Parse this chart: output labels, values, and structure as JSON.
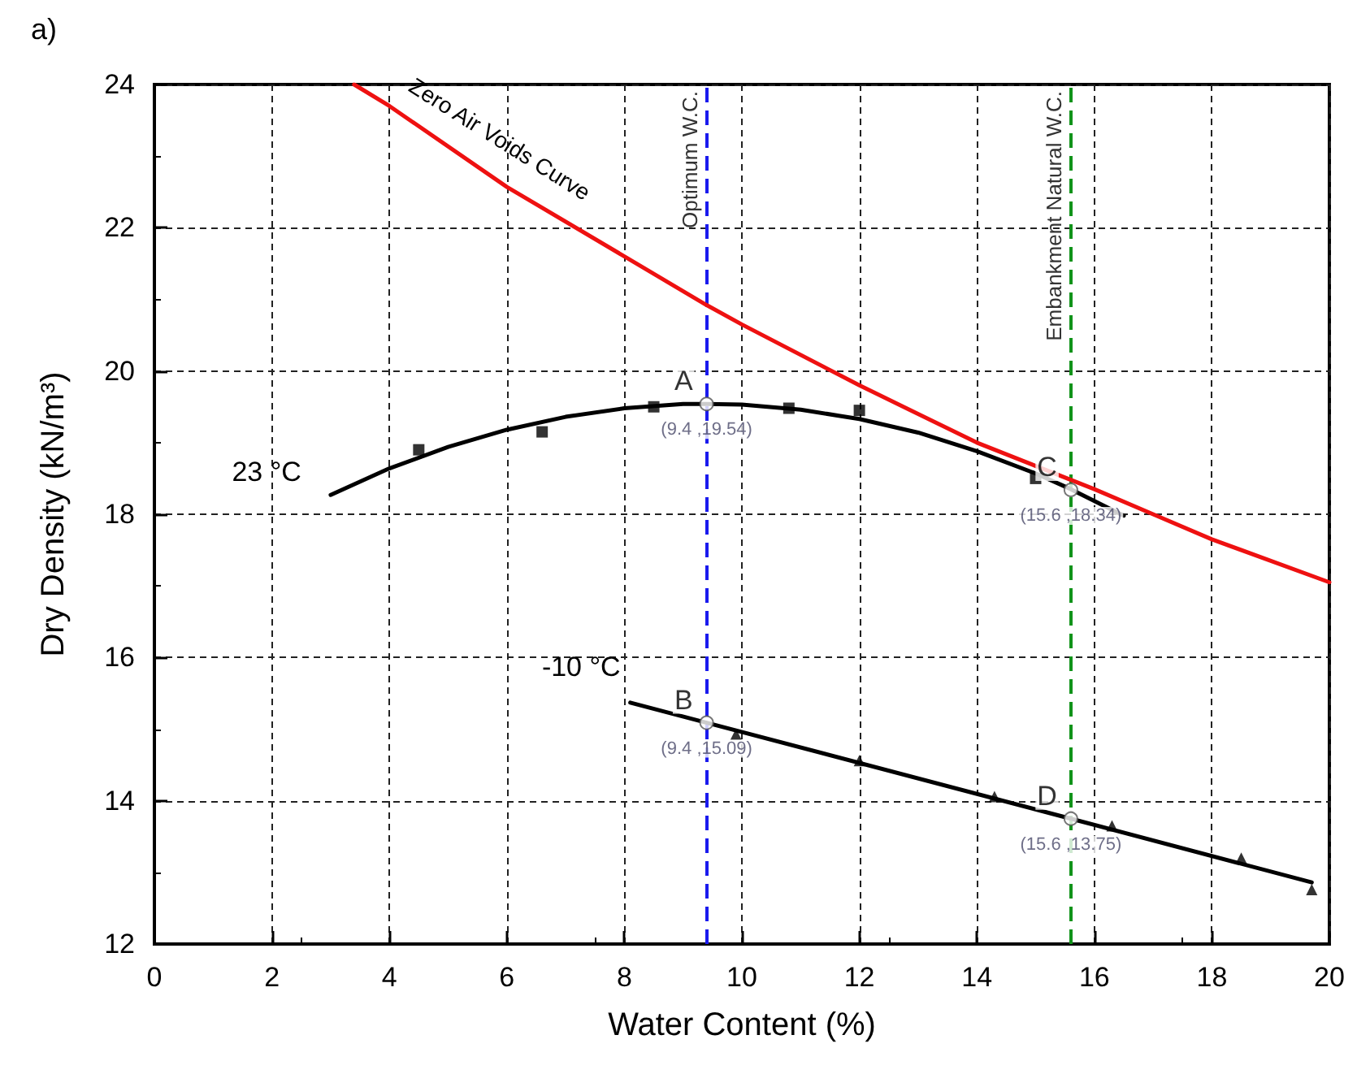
{
  "chart_data": {
    "type": "scatter",
    "title": "a)",
    "xlabel": "Water Content (%)",
    "ylabel": "Dry Density (kN/m³)",
    "xlim": [
      0,
      20
    ],
    "ylim": [
      12,
      24
    ],
    "xticks": [
      0,
      2,
      4,
      6,
      8,
      10,
      12,
      14,
      16,
      18,
      20
    ],
    "yticks": [
      12,
      14,
      16,
      18,
      20,
      22,
      24
    ],
    "grid": true,
    "legend": false,
    "series": [
      {
        "name": "Zero Air Voids Curve",
        "type": "line",
        "color": "#ee1111",
        "marker": "none",
        "x": [
          3.4,
          4,
          6,
          8,
          9.4,
          10,
          12,
          14,
          16,
          17,
          18,
          20
        ],
        "values": [
          24,
          23.7,
          22.57,
          21.6,
          20.92,
          20.65,
          19.8,
          19.0,
          18.35,
          18.0,
          17.65,
          17.05
        ]
      },
      {
        "name": "23 °C",
        "type": "line",
        "color": "#000000",
        "marker": "none",
        "x": [
          3,
          4,
          5,
          6,
          7,
          8,
          9,
          9.4,
          10,
          11,
          12,
          13,
          14,
          15,
          15.6,
          16.5
        ],
        "values": [
          18.27,
          18.64,
          18.94,
          19.18,
          19.36,
          19.48,
          19.54,
          19.54,
          19.53,
          19.46,
          19.33,
          19.14,
          18.88,
          18.57,
          18.35,
          17.98
        ]
      },
      {
        "type": "scatter",
        "color": "#000000",
        "marker": "square",
        "x": [
          4.5,
          6.6,
          8.5,
          10.8,
          12,
          15
        ],
        "values": [
          18.9,
          19.15,
          19.5,
          19.48,
          19.45,
          18.5
        ]
      },
      {
        "name": "-10 °C",
        "type": "line",
        "color": "#000000",
        "marker": "none",
        "x": [
          8.1,
          9.4,
          15.6,
          19.7
        ],
        "values": [
          15.37,
          15.09,
          13.75,
          12.86
        ]
      },
      {
        "type": "scatter",
        "color": "#000000",
        "marker": "triangle",
        "x": [
          9.9,
          12,
          14.3,
          16.3,
          18.5,
          19.7
        ],
        "values": [
          14.93,
          14.56,
          14.06,
          13.65,
          13.2,
          12.76
        ]
      },
      {
        "type": "scatter",
        "color": "#ffffff",
        "marker": "circle",
        "x": [
          9.4,
          9.4,
          15.6,
          15.6
        ],
        "values": [
          19.54,
          15.09,
          18.34,
          13.75
        ],
        "value_labels": [
          "(9.4 ,19.54)",
          "(9.4 ,15.09)",
          "(15.6 ,18.34)",
          "(15.6 ,13.75)"
        ]
      }
    ],
    "ref_lines": [
      {
        "axis": "x",
        "value": 9.4,
        "label": "Optimum W.C.",
        "color": "#1a1aee",
        "line_style": "dashed"
      },
      {
        "axis": "x",
        "value": 15.6,
        "label": "Embankment Natural W.C.",
        "color": "#11931a",
        "line_style": "dashed"
      }
    ],
    "annotations": [
      "A",
      "B",
      "C",
      "D"
    ]
  }
}
